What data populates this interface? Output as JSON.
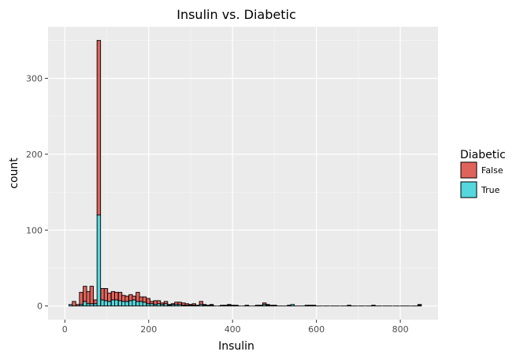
{
  "chart_data": {
    "type": "bar",
    "title": "Insulin vs. Diabetic",
    "xlabel": "Insulin",
    "ylabel": "count",
    "xlim": [
      -40,
      890
    ],
    "ylim": [
      -18,
      368
    ],
    "x_ticks": [
      0,
      200,
      400,
      600,
      800
    ],
    "y_ticks": [
      0,
      100,
      200,
      300
    ],
    "x_tick_labels": [
      "0",
      "200",
      "400",
      "600",
      "800"
    ],
    "y_tick_labels": [
      "0",
      "100",
      "200",
      "300"
    ],
    "bin_width": 8.4,
    "stacked": true,
    "legend": {
      "title": "Diabetic",
      "position": "right",
      "entries": [
        "False",
        "True"
      ]
    },
    "colors": {
      "False": "#e0635b",
      "True": "#56d6dd",
      "panel_background": "#ebebeb",
      "grid": "#ffffff"
    },
    "series": [
      {
        "name": "False",
        "bins": [
          [
            14,
            0
          ],
          [
            22,
            6
          ],
          [
            31,
            2
          ],
          [
            39,
            16
          ],
          [
            48,
            20
          ],
          [
            56,
            16
          ],
          [
            64,
            23
          ],
          [
            73,
            5
          ],
          [
            81,
            230
          ],
          [
            90,
            15
          ],
          [
            98,
            16
          ],
          [
            106,
            11
          ],
          [
            115,
            11
          ],
          [
            123,
            10
          ],
          [
            132,
            11
          ],
          [
            140,
            8
          ],
          [
            148,
            7
          ],
          [
            157,
            8
          ],
          [
            165,
            5
          ],
          [
            174,
            12
          ],
          [
            182,
            6
          ],
          [
            190,
            7
          ],
          [
            199,
            7
          ],
          [
            207,
            3
          ],
          [
            216,
            5
          ],
          [
            224,
            4
          ],
          [
            232,
            2
          ],
          [
            241,
            3
          ],
          [
            249,
            1
          ],
          [
            258,
            1
          ],
          [
            266,
            3
          ],
          [
            274,
            3
          ],
          [
            283,
            3
          ],
          [
            291,
            2
          ],
          [
            300,
            1
          ],
          [
            308,
            2
          ],
          [
            316,
            1
          ],
          [
            325,
            4
          ],
          [
            333,
            1
          ],
          [
            342,
            0
          ],
          [
            350,
            1
          ],
          [
            358,
            0
          ],
          [
            367,
            0
          ],
          [
            375,
            1
          ],
          [
            384,
            0
          ],
          [
            392,
            1
          ],
          [
            400,
            1
          ],
          [
            409,
            1
          ],
          [
            417,
            0
          ],
          [
            426,
            0
          ],
          [
            434,
            1
          ],
          [
            442,
            0
          ],
          [
            451,
            0
          ],
          [
            459,
            1
          ],
          [
            468,
            1
          ],
          [
            476,
            2
          ],
          [
            484,
            1
          ],
          [
            493,
            0
          ],
          [
            501,
            1
          ],
          [
            510,
            0
          ],
          [
            518,
            0
          ],
          [
            526,
            0
          ],
          [
            535,
            1
          ],
          [
            543,
            0
          ],
          [
            552,
            0
          ],
          [
            560,
            0
          ],
          [
            568,
            0
          ],
          [
            577,
            0
          ],
          [
            585,
            1
          ],
          [
            594,
            0
          ],
          [
            602,
            0
          ],
          [
            610,
            0
          ],
          [
            619,
            0
          ],
          [
            627,
            0
          ],
          [
            636,
            0
          ],
          [
            644,
            0
          ],
          [
            652,
            0
          ],
          [
            661,
            0
          ],
          [
            669,
            0
          ],
          [
            678,
            1
          ],
          [
            686,
            0
          ],
          [
            694,
            0
          ],
          [
            703,
            0
          ],
          [
            711,
            0
          ],
          [
            720,
            0
          ],
          [
            728,
            0
          ],
          [
            736,
            0
          ],
          [
            745,
            0
          ],
          [
            753,
            0
          ],
          [
            762,
            0
          ],
          [
            770,
            0
          ],
          [
            778,
            0
          ],
          [
            787,
            0
          ],
          [
            795,
            0
          ],
          [
            804,
            0
          ],
          [
            812,
            0
          ],
          [
            820,
            0
          ],
          [
            829,
            0
          ],
          [
            837,
            0
          ],
          [
            846,
            1
          ]
        ]
      },
      {
        "name": "True",
        "bins": [
          [
            14,
            2
          ],
          [
            22,
            0
          ],
          [
            31,
            0
          ],
          [
            39,
            2
          ],
          [
            48,
            6
          ],
          [
            56,
            3
          ],
          [
            64,
            3
          ],
          [
            73,
            3
          ],
          [
            81,
            120
          ],
          [
            90,
            8
          ],
          [
            98,
            7
          ],
          [
            106,
            6
          ],
          [
            115,
            8
          ],
          [
            123,
            8
          ],
          [
            132,
            7
          ],
          [
            140,
            6
          ],
          [
            148,
            6
          ],
          [
            157,
            7
          ],
          [
            165,
            8
          ],
          [
            174,
            6
          ],
          [
            182,
            6
          ],
          [
            190,
            5
          ],
          [
            199,
            3
          ],
          [
            207,
            3
          ],
          [
            216,
            2
          ],
          [
            224,
            3
          ],
          [
            232,
            2
          ],
          [
            241,
            3
          ],
          [
            249,
            1
          ],
          [
            258,
            2
          ],
          [
            266,
            2
          ],
          [
            274,
            2
          ],
          [
            283,
            1
          ],
          [
            291,
            1
          ],
          [
            300,
            1
          ],
          [
            308,
            1
          ],
          [
            316,
            0
          ],
          [
            325,
            2
          ],
          [
            333,
            1
          ],
          [
            342,
            1
          ],
          [
            350,
            1
          ],
          [
            358,
            0
          ],
          [
            367,
            0
          ],
          [
            375,
            0
          ],
          [
            384,
            1
          ],
          [
            392,
            1
          ],
          [
            400,
            0
          ],
          [
            409,
            0
          ],
          [
            417,
            0
          ],
          [
            426,
            0
          ],
          [
            434,
            0
          ],
          [
            442,
            0
          ],
          [
            451,
            0
          ],
          [
            459,
            0
          ],
          [
            468,
            0
          ],
          [
            476,
            2
          ],
          [
            484,
            1
          ],
          [
            493,
            1
          ],
          [
            501,
            0
          ],
          [
            510,
            0
          ],
          [
            518,
            0
          ],
          [
            526,
            0
          ],
          [
            535,
            0
          ],
          [
            543,
            2
          ],
          [
            552,
            0
          ],
          [
            560,
            0
          ],
          [
            568,
            0
          ],
          [
            577,
            1
          ],
          [
            585,
            0
          ],
          [
            594,
            1
          ],
          [
            602,
            0
          ],
          [
            610,
            0
          ],
          [
            619,
            0
          ],
          [
            627,
            0
          ],
          [
            636,
            0
          ],
          [
            644,
            0
          ],
          [
            652,
            0
          ],
          [
            661,
            0
          ],
          [
            669,
            0
          ],
          [
            678,
            0
          ],
          [
            686,
            0
          ],
          [
            694,
            0
          ],
          [
            703,
            0
          ],
          [
            711,
            0
          ],
          [
            720,
            0
          ],
          [
            728,
            0
          ],
          [
            736,
            1
          ],
          [
            745,
            0
          ],
          [
            753,
            0
          ],
          [
            762,
            0
          ],
          [
            770,
            0
          ],
          [
            778,
            0
          ],
          [
            787,
            0
          ],
          [
            795,
            0
          ],
          [
            804,
            0
          ],
          [
            812,
            0
          ],
          [
            820,
            0
          ],
          [
            829,
            0
          ],
          [
            837,
            0
          ],
          [
            846,
            1
          ]
        ]
      }
    ]
  }
}
